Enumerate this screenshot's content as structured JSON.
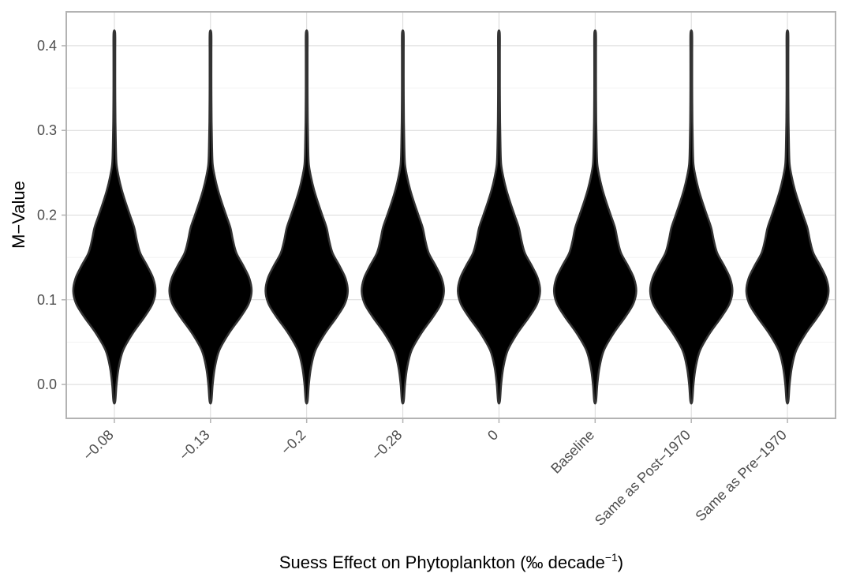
{
  "chart_data": {
    "type": "violin",
    "xlabel_main": "Suess Effect on Phytoplankton (‰ decade",
    "xlabel_sup": "−1",
    "xlabel_close": ")",
    "ylabel": "M−Value",
    "categories": [
      "−0.08",
      "−0.13",
      "−0.2",
      "−0.28",
      "0",
      "Baseline",
      "Same as Post−1970",
      "Same as Pre−1970"
    ],
    "ylim": [
      -0.04,
      0.44
    ],
    "yticks": [
      0.0,
      0.1,
      0.2,
      0.3,
      0.4
    ],
    "ytick_labels": [
      "0.0",
      "0.1",
      "0.2",
      "0.3",
      "0.4"
    ],
    "grid": true,
    "fill_color": "#000000",
    "outline_color": "#333333",
    "density_profile": [
      {
        "y": -0.02,
        "w": 0.02
      },
      {
        "y": 0.0,
        "w": 0.05
      },
      {
        "y": 0.02,
        "w": 0.1
      },
      {
        "y": 0.04,
        "w": 0.2
      },
      {
        "y": 0.06,
        "w": 0.42
      },
      {
        "y": 0.08,
        "w": 0.7
      },
      {
        "y": 0.095,
        "w": 0.88
      },
      {
        "y": 0.11,
        "w": 0.95
      },
      {
        "y": 0.125,
        "w": 0.9
      },
      {
        "y": 0.14,
        "w": 0.76
      },
      {
        "y": 0.155,
        "w": 0.6
      },
      {
        "y": 0.17,
        "w": 0.52
      },
      {
        "y": 0.185,
        "w": 0.46
      },
      {
        "y": 0.2,
        "w": 0.36
      },
      {
        "y": 0.215,
        "w": 0.26
      },
      {
        "y": 0.23,
        "w": 0.17
      },
      {
        "y": 0.245,
        "w": 0.1
      },
      {
        "y": 0.26,
        "w": 0.05
      },
      {
        "y": 0.28,
        "w": 0.035
      },
      {
        "y": 0.31,
        "w": 0.025
      },
      {
        "y": 0.35,
        "w": 0.02
      },
      {
        "y": 0.39,
        "w": 0.02
      },
      {
        "y": 0.415,
        "w": 0.018
      }
    ]
  }
}
